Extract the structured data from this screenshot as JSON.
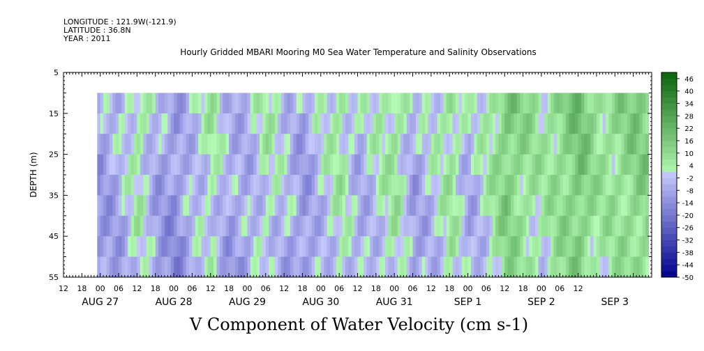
{
  "meta": {
    "longitude": "LONGITUDE : 121.9W(-121.9)",
    "latitude": "LATITUDE : 36.8N",
    "year": "YEAR : 2011"
  },
  "chart_data": {
    "type": "heatmap",
    "title": "Hourly Gridded MBARI Mooring M0 Sea Water Temperature and Salinity Observations",
    "xlabel": "V Component of Water Velocity (cm s-1)",
    "ylabel": "DEPTH (m)",
    "y_reversed": true,
    "ylim": [
      5,
      55
    ],
    "y_ticks": [
      "5",
      "15",
      "25",
      "35",
      "45",
      "55"
    ],
    "data_depth_range": [
      10,
      55
    ],
    "x_hour_ticks": [
      "12",
      "18",
      "00",
      "06",
      "12",
      "18",
      "00",
      "06",
      "12",
      "18",
      "00",
      "06",
      "12",
      "18",
      "00",
      "06",
      "12",
      "18",
      "00",
      "06",
      "12",
      "18",
      "00",
      "06",
      "12",
      "18",
      "00",
      "06",
      "12"
    ],
    "x_day_labels": [
      "AUG 27",
      "AUG 28",
      "AUG 29",
      "AUG 30",
      "AUG 31",
      "SEP  1",
      "SEP  2",
      "SEP  3"
    ],
    "x_range_hours_from_aug27_00": [
      -12,
      180
    ],
    "data_start_hour_from_aug27_00": -1,
    "data_end_hour_from_aug27_00": 179,
    "colorbar": {
      "labels": [
        "46",
        "40",
        "34",
        "28",
        "22",
        "16",
        "10",
        "4",
        "-2",
        "-8",
        "-14",
        "-20",
        "-26",
        "-32",
        "-38",
        "-44",
        "-50"
      ],
      "range": [
        -50,
        49
      ],
      "step": 3
    },
    "approx_column_values": {
      "comment_free_series": "mean V velocity by 6-hour step, approximate",
      "hours": [
        0,
        6,
        12,
        18,
        24,
        30,
        36,
        42,
        48,
        54,
        60,
        66,
        72,
        78,
        84,
        90,
        96,
        102,
        108,
        114,
        120,
        126,
        132,
        138,
        144,
        150,
        156,
        162,
        168,
        174
      ],
      "values": [
        -10,
        -6,
        4,
        -8,
        -12,
        -4,
        2,
        -8,
        -6,
        2,
        -4,
        -10,
        -2,
        4,
        -6,
        0,
        6,
        -8,
        -2,
        6,
        -6,
        2,
        14,
        8,
        4,
        10,
        16,
        6,
        8,
        12
      ]
    }
  }
}
